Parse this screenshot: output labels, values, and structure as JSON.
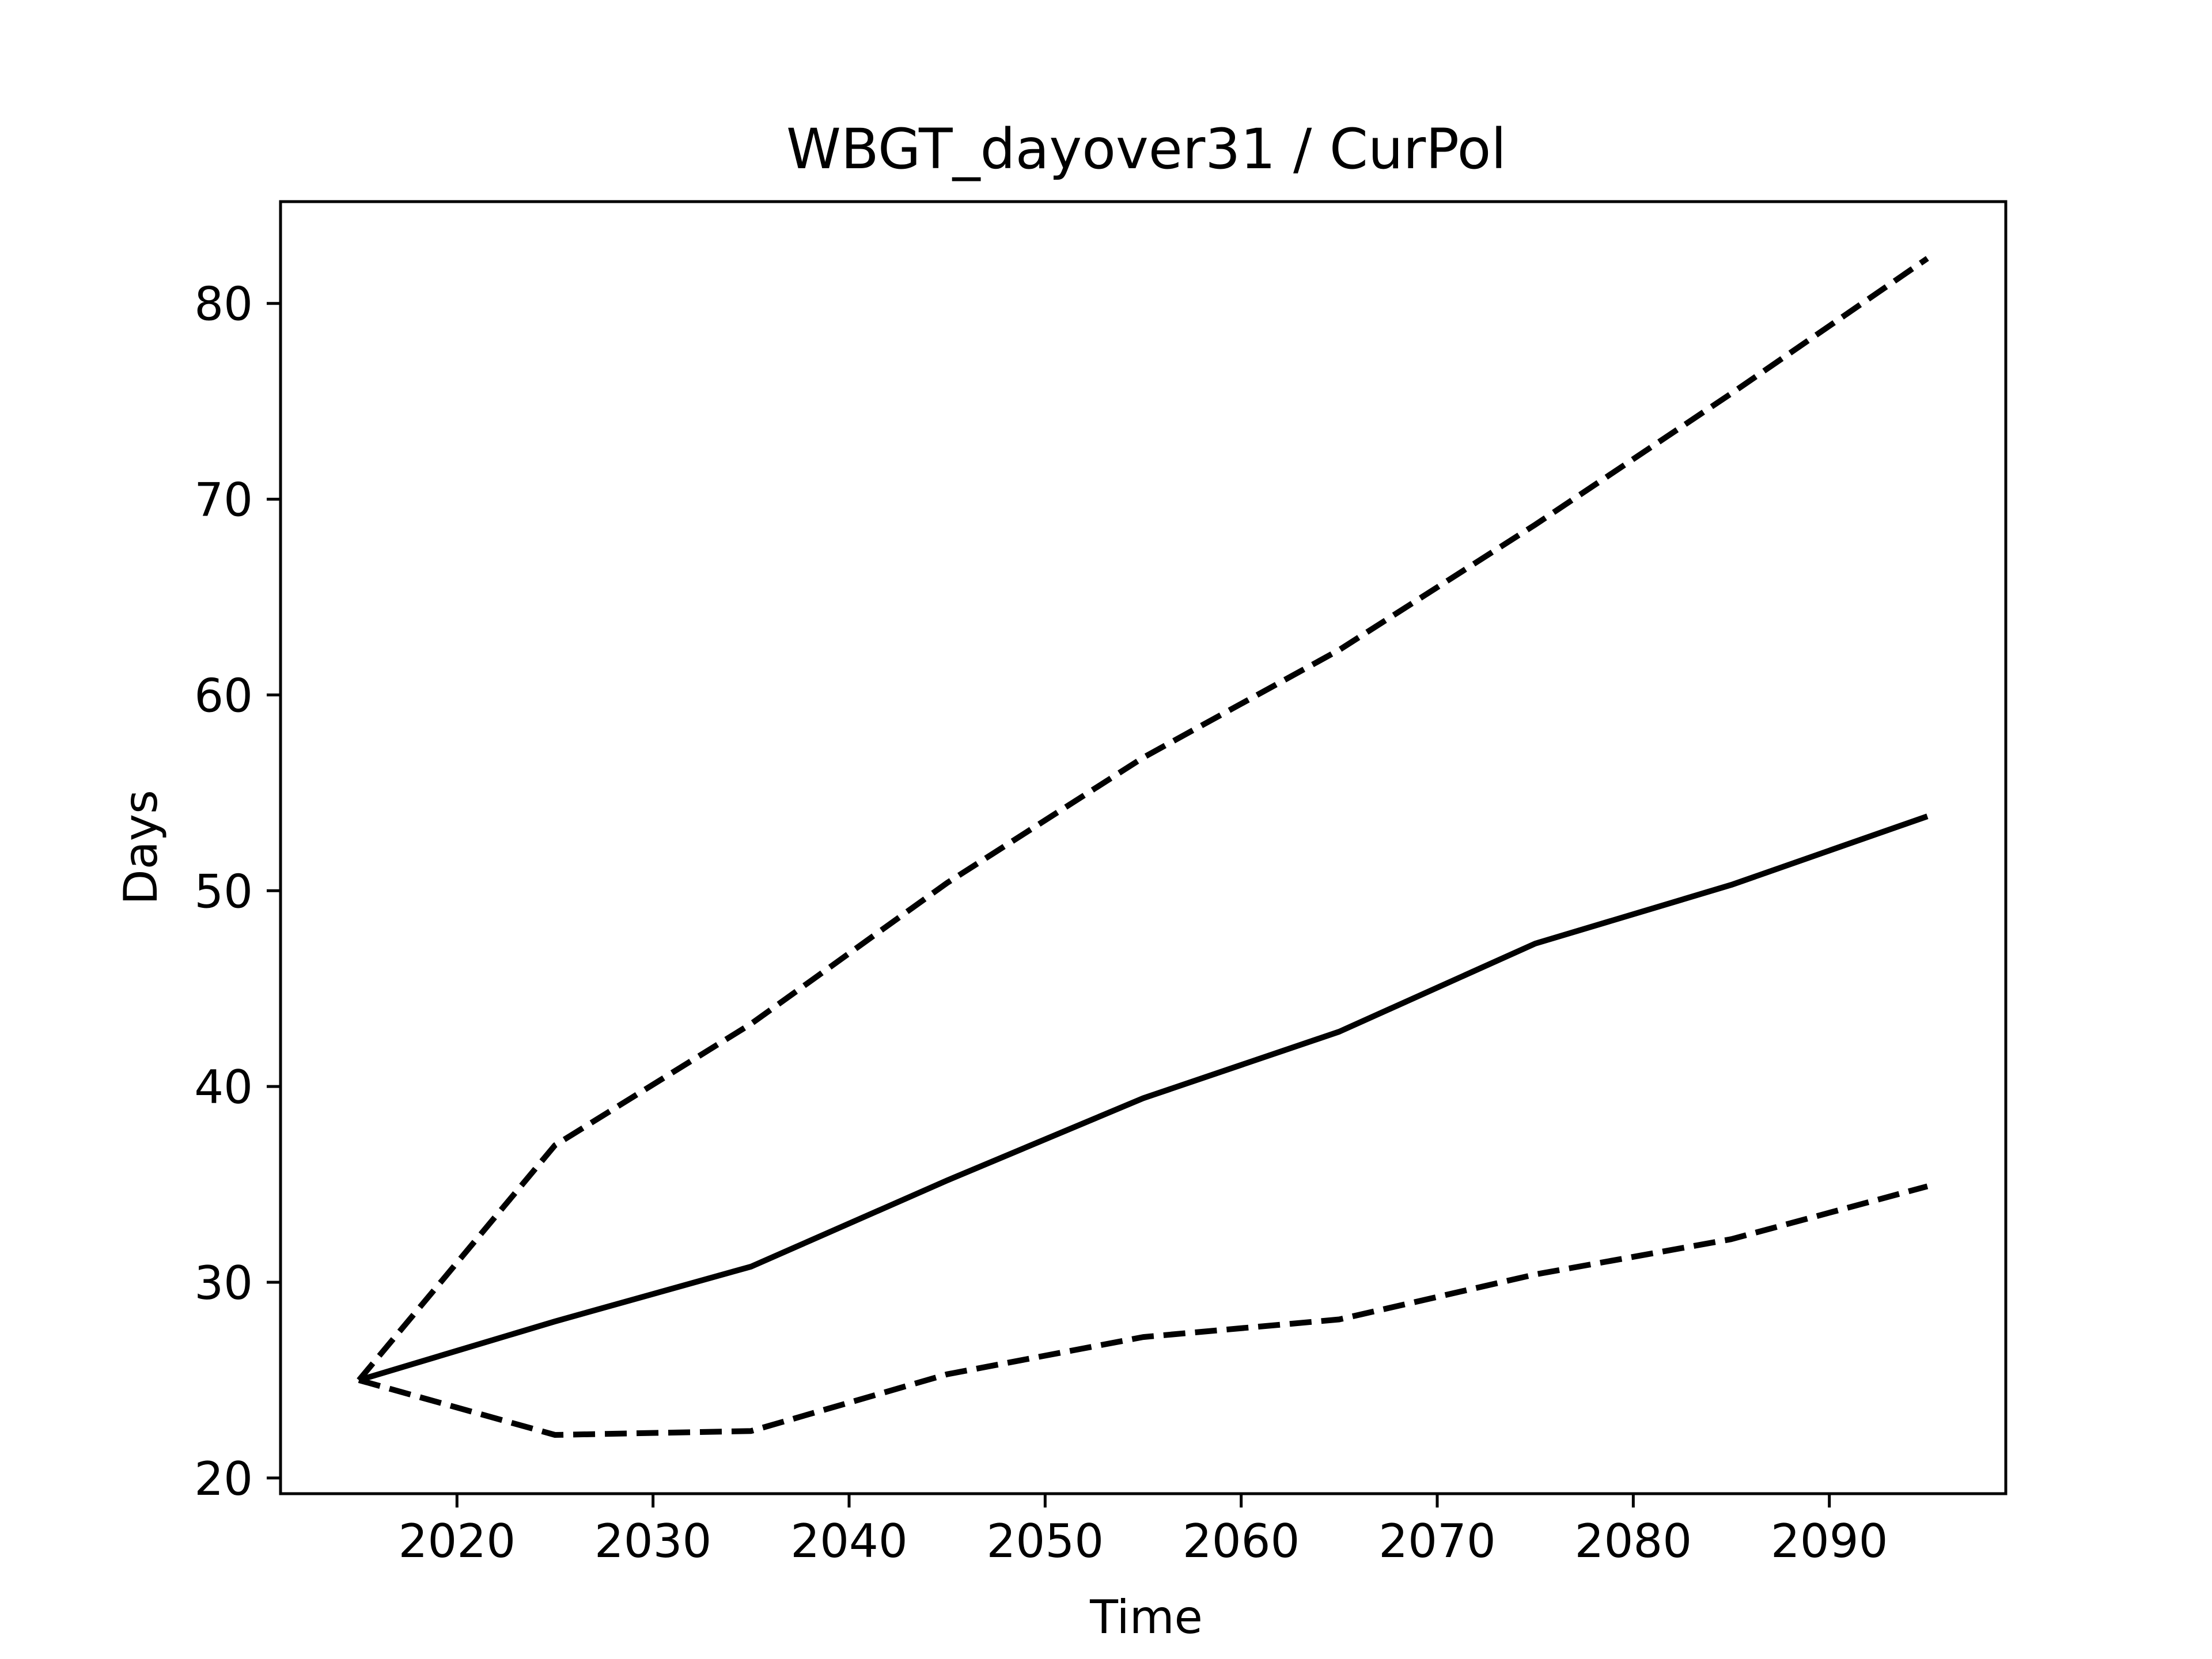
{
  "chart_data": {
    "type": "line",
    "title": "WBGT_dayover31 / CurPol",
    "xlabel": "Time",
    "ylabel": "Days",
    "xlim": [
      2011,
      2099
    ],
    "ylim": [
      19.2,
      85.2
    ],
    "x_ticks": [
      2020,
      2030,
      2040,
      2050,
      2060,
      2070,
      2080,
      2090
    ],
    "y_ticks": [
      20,
      30,
      40,
      50,
      60,
      70,
      80
    ],
    "x": [
      2015,
      2025,
      2035,
      2045,
      2055,
      2065,
      2075,
      2085,
      2095
    ],
    "series": [
      {
        "style": "solid",
        "values": [
          25.0,
          28.0,
          30.8,
          35.2,
          39.4,
          42.8,
          47.3,
          50.3,
          53.8
        ]
      },
      {
        "style": "dashed",
        "values": [
          25.0,
          37.0,
          43.2,
          50.4,
          56.8,
          62.3,
          68.7,
          75.4,
          82.3
        ]
      },
      {
        "style": "dashed",
        "values": [
          25.0,
          22.2,
          22.4,
          25.3,
          27.2,
          28.1,
          30.4,
          32.2,
          34.9
        ]
      }
    ],
    "colors": {
      "line": "#000000",
      "axes": "#000000",
      "background": "#ffffff"
    },
    "grid": false,
    "legend": "none"
  }
}
